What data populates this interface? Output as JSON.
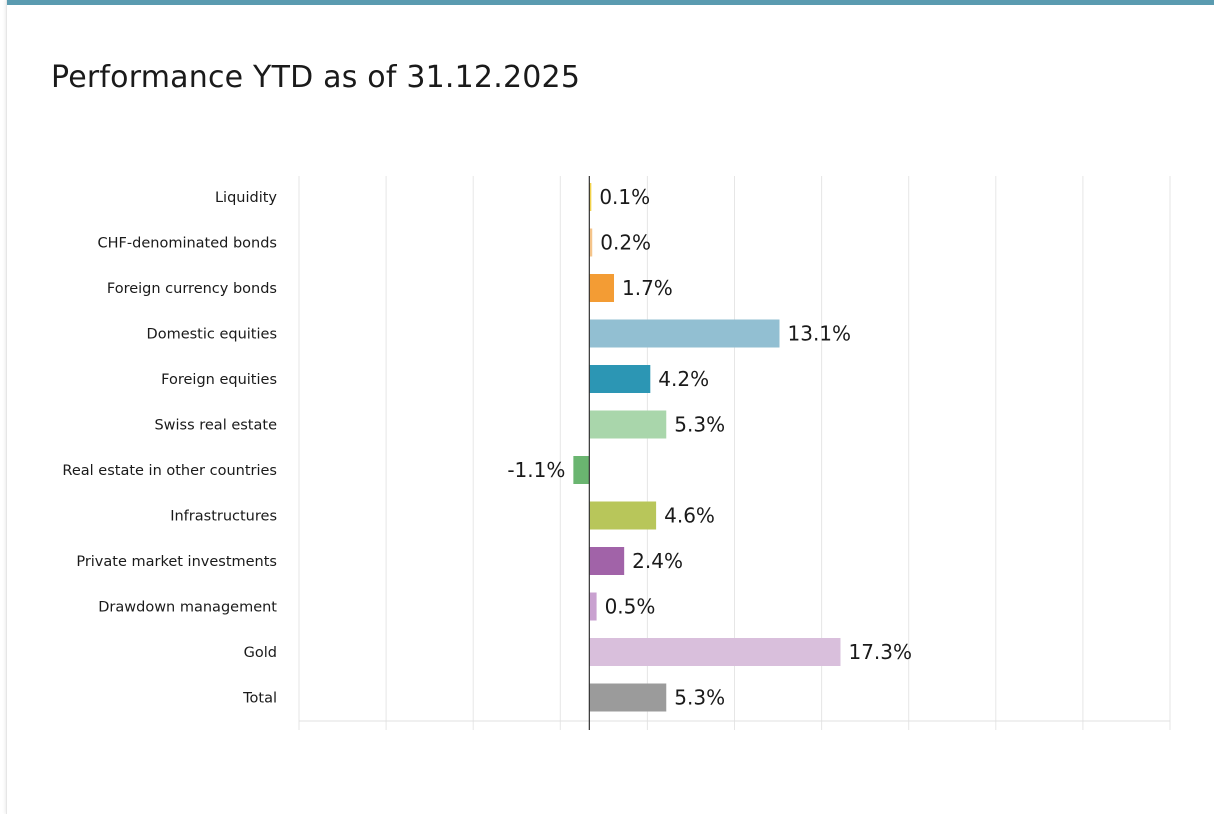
{
  "page": {
    "title": "Performance YTD as of 31.12.2025",
    "accent_color": "#5a9bb0"
  },
  "chart_data": {
    "type": "bar",
    "orientation": "horizontal",
    "title": "Performance YTD as of 31.12.2025",
    "unit": "%",
    "xlim": [
      -20,
      40
    ],
    "grid": true,
    "categories": [
      "Liquidity",
      "CHF-denominated bonds",
      "Foreign currency bonds",
      "Domestic equities",
      "Foreign equities",
      "Swiss real estate",
      "Real estate in other countries",
      "Infrastructures",
      "Private market investments",
      "Drawdown management",
      "Gold",
      "Total"
    ],
    "values": [
      0.1,
      0.2,
      1.7,
      13.1,
      4.2,
      5.3,
      -1.1,
      4.6,
      2.4,
      0.5,
      17.3,
      5.3
    ],
    "labels": [
      "0.1%",
      "0.2%",
      "1.7%",
      "13.1%",
      "4.2%",
      "5.3%",
      "-1.1%",
      "4.6%",
      "2.4%",
      "0.5%",
      "17.3%",
      "5.3%"
    ],
    "colors": [
      "#f2d24b",
      "#f5c48a",
      "#f39c34",
      "#92bfd2",
      "#2c96b4",
      "#a9d6ab",
      "#6ab570",
      "#b8c65a",
      "#a163a8",
      "#c9a1d0",
      "#d9bfdc",
      "#9b9b9b"
    ]
  }
}
